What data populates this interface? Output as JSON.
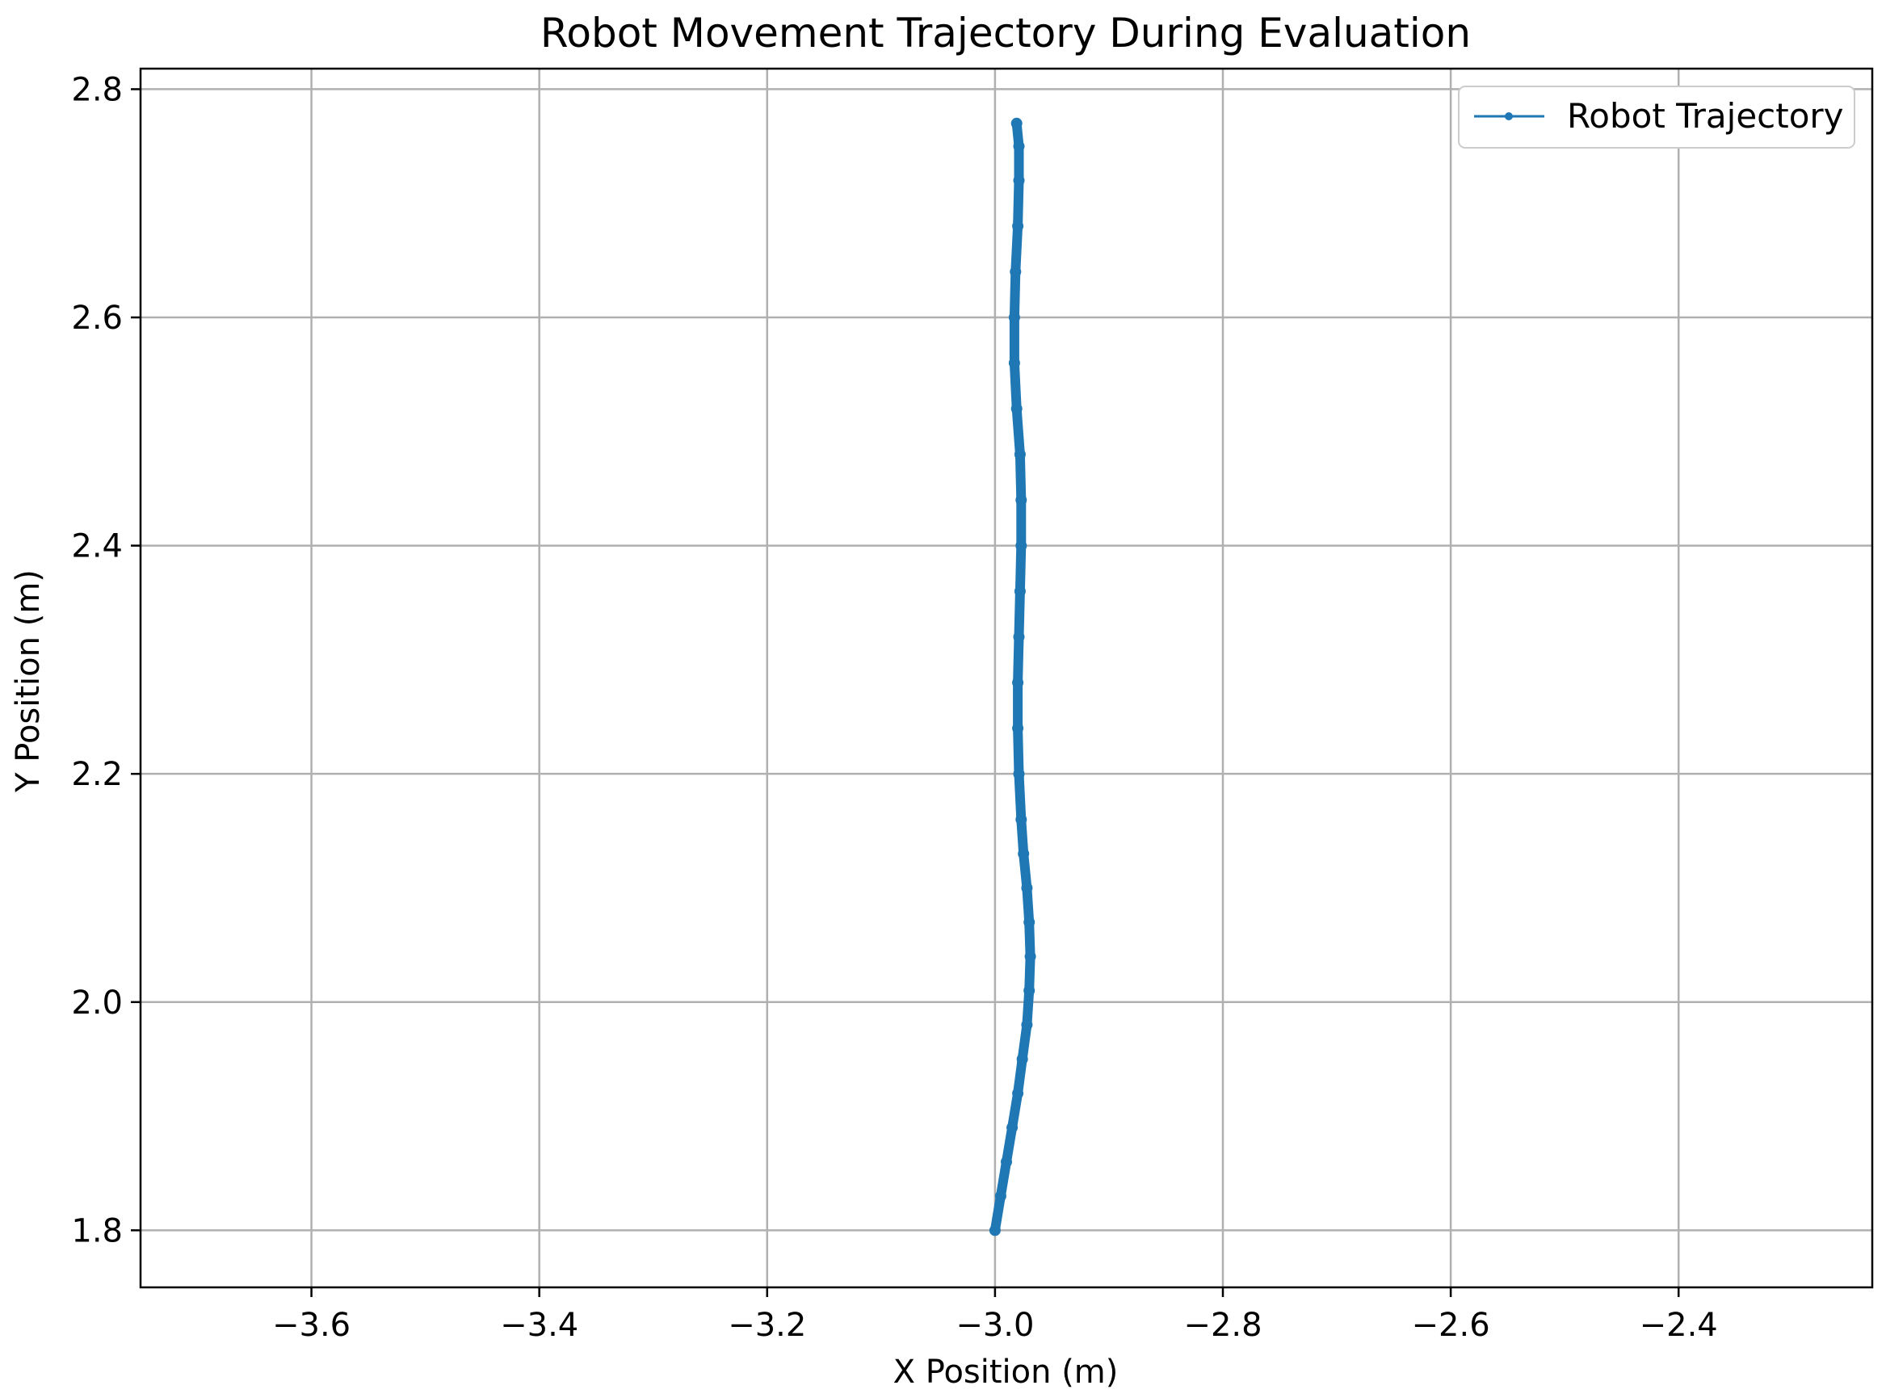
{
  "chart_data": {
    "type": "line",
    "title": "Robot Movement Trajectory During Evaluation",
    "xlabel": "X Position (m)",
    "ylabel": "Y Position (m)",
    "xlim": [
      -3.75,
      -2.23
    ],
    "ylim": [
      1.75,
      2.818
    ],
    "xticks": [
      -3.6,
      -3.4,
      -3.2,
      -3.0,
      -2.8,
      -2.6,
      -2.4
    ],
    "xtick_labels": [
      "−3.6",
      "−3.4",
      "−3.2",
      "−3.0",
      "−2.8",
      "−2.6",
      "−2.4"
    ],
    "yticks": [
      1.8,
      2.0,
      2.2,
      2.4,
      2.6,
      2.8
    ],
    "ytick_labels": [
      "1.8",
      "2.0",
      "2.2",
      "2.4",
      "2.6",
      "2.8"
    ],
    "grid": true,
    "legend_position": "upper right",
    "series": [
      {
        "name": "Robot Trajectory",
        "color": "#1f77b4",
        "marker": "dot",
        "x": [
          -3.0,
          -2.995,
          -2.99,
          -2.985,
          -2.98,
          -2.976,
          -2.972,
          -2.97,
          -2.969,
          -2.97,
          -2.972,
          -2.975,
          -2.977,
          -2.979,
          -2.98,
          -2.98,
          -2.979,
          -2.978,
          -2.977,
          -2.977,
          -2.978,
          -2.981,
          -2.983,
          -2.983,
          -2.982,
          -2.98,
          -2.979,
          -2.979,
          -2.981
        ],
        "y": [
          1.8,
          1.83,
          1.86,
          1.89,
          1.92,
          1.95,
          1.98,
          2.01,
          2.04,
          2.07,
          2.1,
          2.13,
          2.16,
          2.2,
          2.24,
          2.28,
          2.32,
          2.36,
          2.4,
          2.44,
          2.48,
          2.52,
          2.56,
          2.6,
          2.64,
          2.68,
          2.72,
          2.75,
          2.77
        ]
      }
    ]
  }
}
